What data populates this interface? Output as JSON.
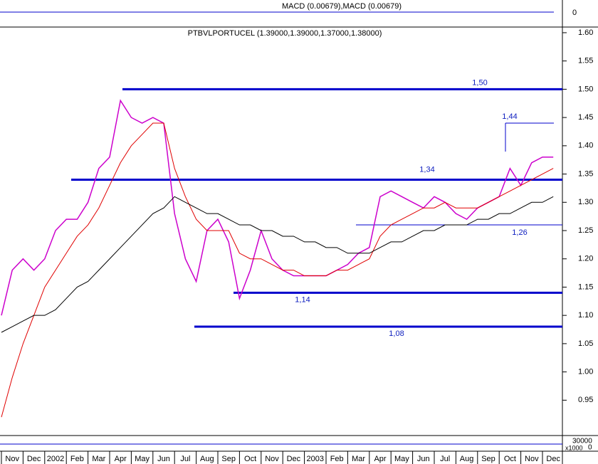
{
  "chart_data": {
    "type": "line",
    "title": "PTBVLPORTUCEL (1.39000,1.39000,1.37000,1.38000)",
    "macd_title": "MACD (0.00679),MACD (0.00679)",
    "macd_ticks": [
      "0"
    ],
    "volume_ticks": [
      "30000",
      "0",
      "x1000"
    ],
    "categories": [
      null,
      "Nov",
      null,
      "Dec",
      null,
      "2002",
      null,
      "Feb",
      null,
      "Mar",
      null,
      "Apr",
      null,
      "May",
      null,
      "Jun",
      null,
      "Jul",
      null,
      "Aug",
      null,
      "Sep",
      null,
      "Oct",
      null,
      "Nov",
      null,
      "Dec",
      null,
      "2003",
      null,
      "Feb",
      null,
      "Mar",
      null,
      "Apr",
      null,
      "May",
      null,
      "Jun",
      null,
      "Jul",
      null,
      "Aug",
      null,
      "Sep",
      null,
      "Oct",
      null,
      "Nov",
      null,
      "Dec"
    ],
    "series": [
      {
        "color": "#cc00cc",
        "values": [
          1.1,
          1.18,
          1.2,
          1.18,
          1.2,
          1.25,
          1.27,
          1.27,
          1.3,
          1.36,
          1.38,
          1.48,
          1.45,
          1.44,
          1.45,
          1.44,
          1.28,
          1.2,
          1.16,
          1.25,
          1.27,
          1.23,
          1.13,
          1.18,
          1.25,
          1.2,
          1.18,
          1.17,
          1.17,
          1.17,
          1.17,
          1.18,
          1.19,
          1.21,
          1.22,
          1.31,
          1.32,
          1.31,
          1.3,
          1.29,
          1.31,
          1.3,
          1.28,
          1.27,
          1.29,
          1.3,
          1.31,
          1.36,
          1.33,
          1.37,
          1.38,
          1.38
        ]
      },
      {
        "color": "#e00000",
        "values": [
          0.92,
          0.99,
          1.05,
          1.1,
          1.15,
          1.18,
          1.21,
          1.24,
          1.26,
          1.29,
          1.33,
          1.37,
          1.4,
          1.42,
          1.44,
          1.44,
          1.36,
          1.31,
          1.27,
          1.25,
          1.25,
          1.25,
          1.21,
          1.2,
          1.2,
          1.19,
          1.18,
          1.18,
          1.17,
          1.17,
          1.17,
          1.18,
          1.18,
          1.19,
          1.2,
          1.24,
          1.26,
          1.27,
          1.28,
          1.29,
          1.29,
          1.3,
          1.29,
          1.29,
          1.29,
          1.3,
          1.31,
          1.32,
          1.33,
          1.34,
          1.35,
          1.36
        ]
      },
      {
        "color": "#000000",
        "values": [
          1.07,
          1.08,
          1.09,
          1.1,
          1.1,
          1.11,
          1.13,
          1.15,
          1.16,
          1.18,
          1.2,
          1.22,
          1.24,
          1.26,
          1.28,
          1.29,
          1.31,
          1.3,
          1.29,
          1.28,
          1.28,
          1.27,
          1.26,
          1.26,
          1.25,
          1.25,
          1.24,
          1.24,
          1.23,
          1.23,
          1.22,
          1.22,
          1.21,
          1.21,
          1.21,
          1.22,
          1.23,
          1.23,
          1.24,
          1.25,
          1.25,
          1.26,
          1.26,
          1.26,
          1.27,
          1.27,
          1.28,
          1.28,
          1.29,
          1.3,
          1.3,
          1.31
        ]
      }
    ],
    "levels": [
      {
        "value": 1.5,
        "label": "1,50"
      },
      {
        "value": 1.44,
        "label": "1,44"
      },
      {
        "value": 1.34,
        "label": "1,34"
      },
      {
        "value": 1.26,
        "label": "1,26"
      },
      {
        "value": 1.14,
        "label": "1,14"
      },
      {
        "value": 1.08,
        "label": "1,08"
      }
    ],
    "level_color": "#0000cc",
    "ylim": [
      0.89,
      1.61
    ],
    "yticks": [
      0.95,
      {
        "value": 1.0,
        "label": "1.00"
      },
      1.05,
      {
        "value": 1.1,
        "label": "1.10"
      },
      1.15,
      {
        "value": 1.2,
        "label": "1.20"
      },
      1.25,
      {
        "value": 1.3,
        "label": "1.30"
      },
      1.35,
      {
        "value": 1.4,
        "label": "1.40"
      },
      1.45,
      {
        "value": 1.5,
        "label": "1.50"
      },
      1.55,
      {
        "value": 1.6,
        "label": "1.60"
      }
    ]
  }
}
